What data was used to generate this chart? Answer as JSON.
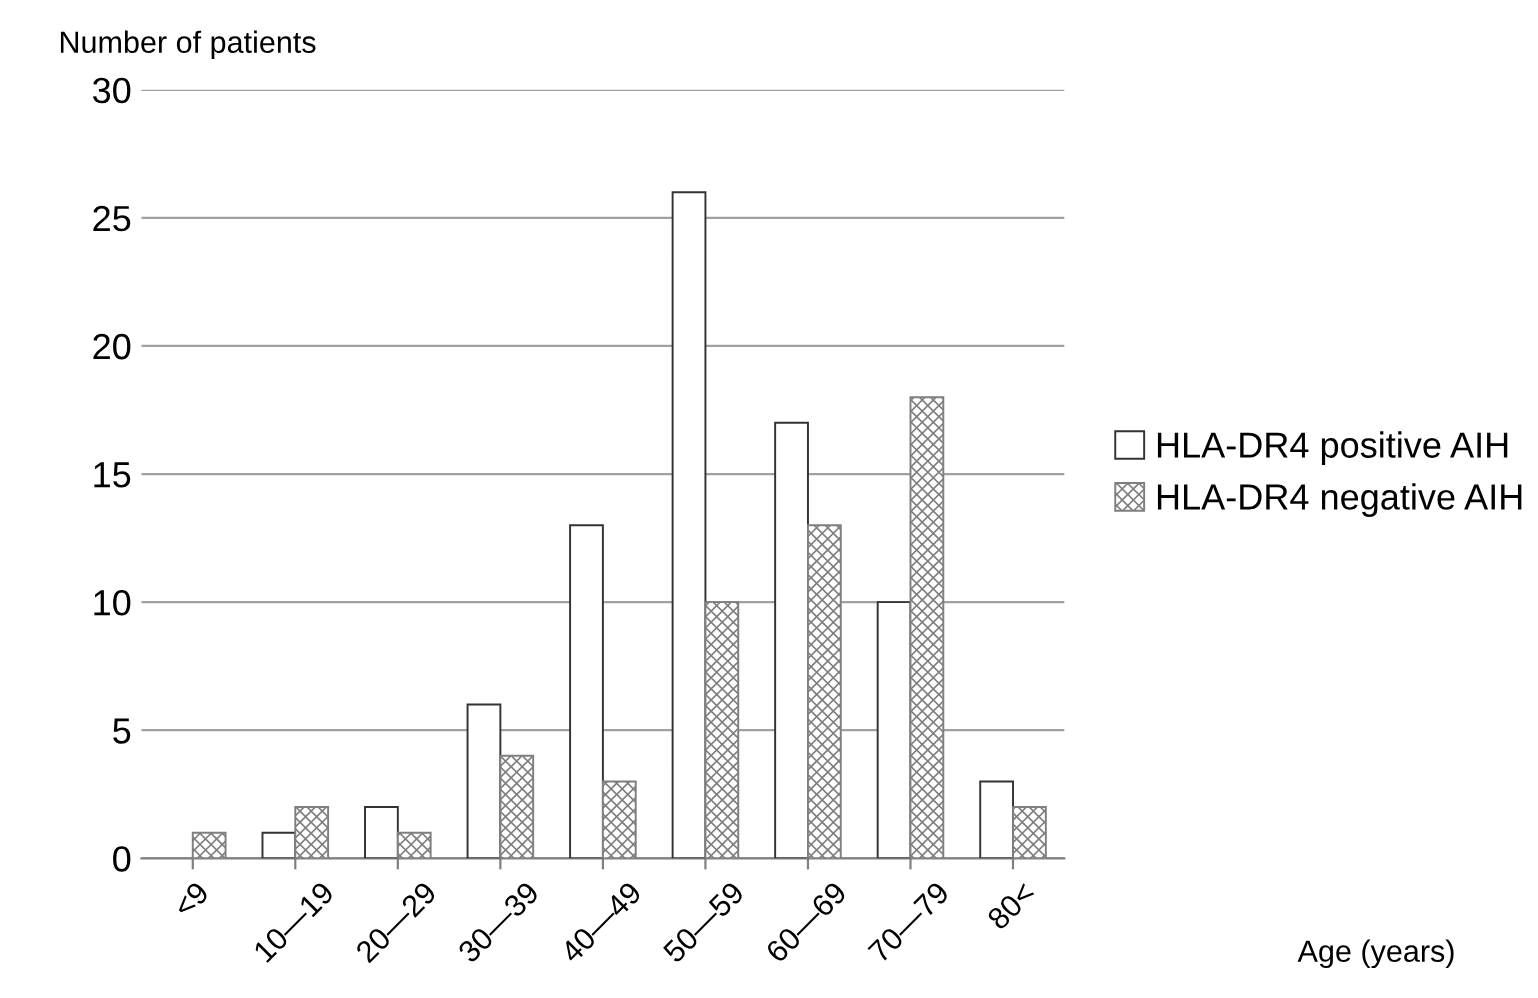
{
  "chart_data": {
    "type": "bar",
    "annotations": [
      "Age (years)"
    ],
    "ylabel": "Number of patients",
    "categories": [
      "<9",
      "10—19",
      "20—29",
      "30—39",
      "40—49",
      "50—59",
      "60—69",
      "70—79",
      "80<"
    ],
    "series": [
      {
        "name": "HLA-DR4 positive AIH",
        "color": "#ffffff",
        "values": [
          0,
          1,
          2,
          6,
          13,
          26,
          17,
          10,
          3
        ]
      },
      {
        "name": "HLA-DR4 negative AIH",
        "color": "#7f7f7f",
        "values": [
          1,
          2,
          1,
          4,
          3,
          10,
          13,
          18,
          2
        ]
      }
    ],
    "ylim": [
      0,
      30
    ],
    "yticks": [
      0,
      5,
      10,
      15,
      20,
      25,
      30
    ],
    "grid": "y",
    "legend": "right"
  }
}
